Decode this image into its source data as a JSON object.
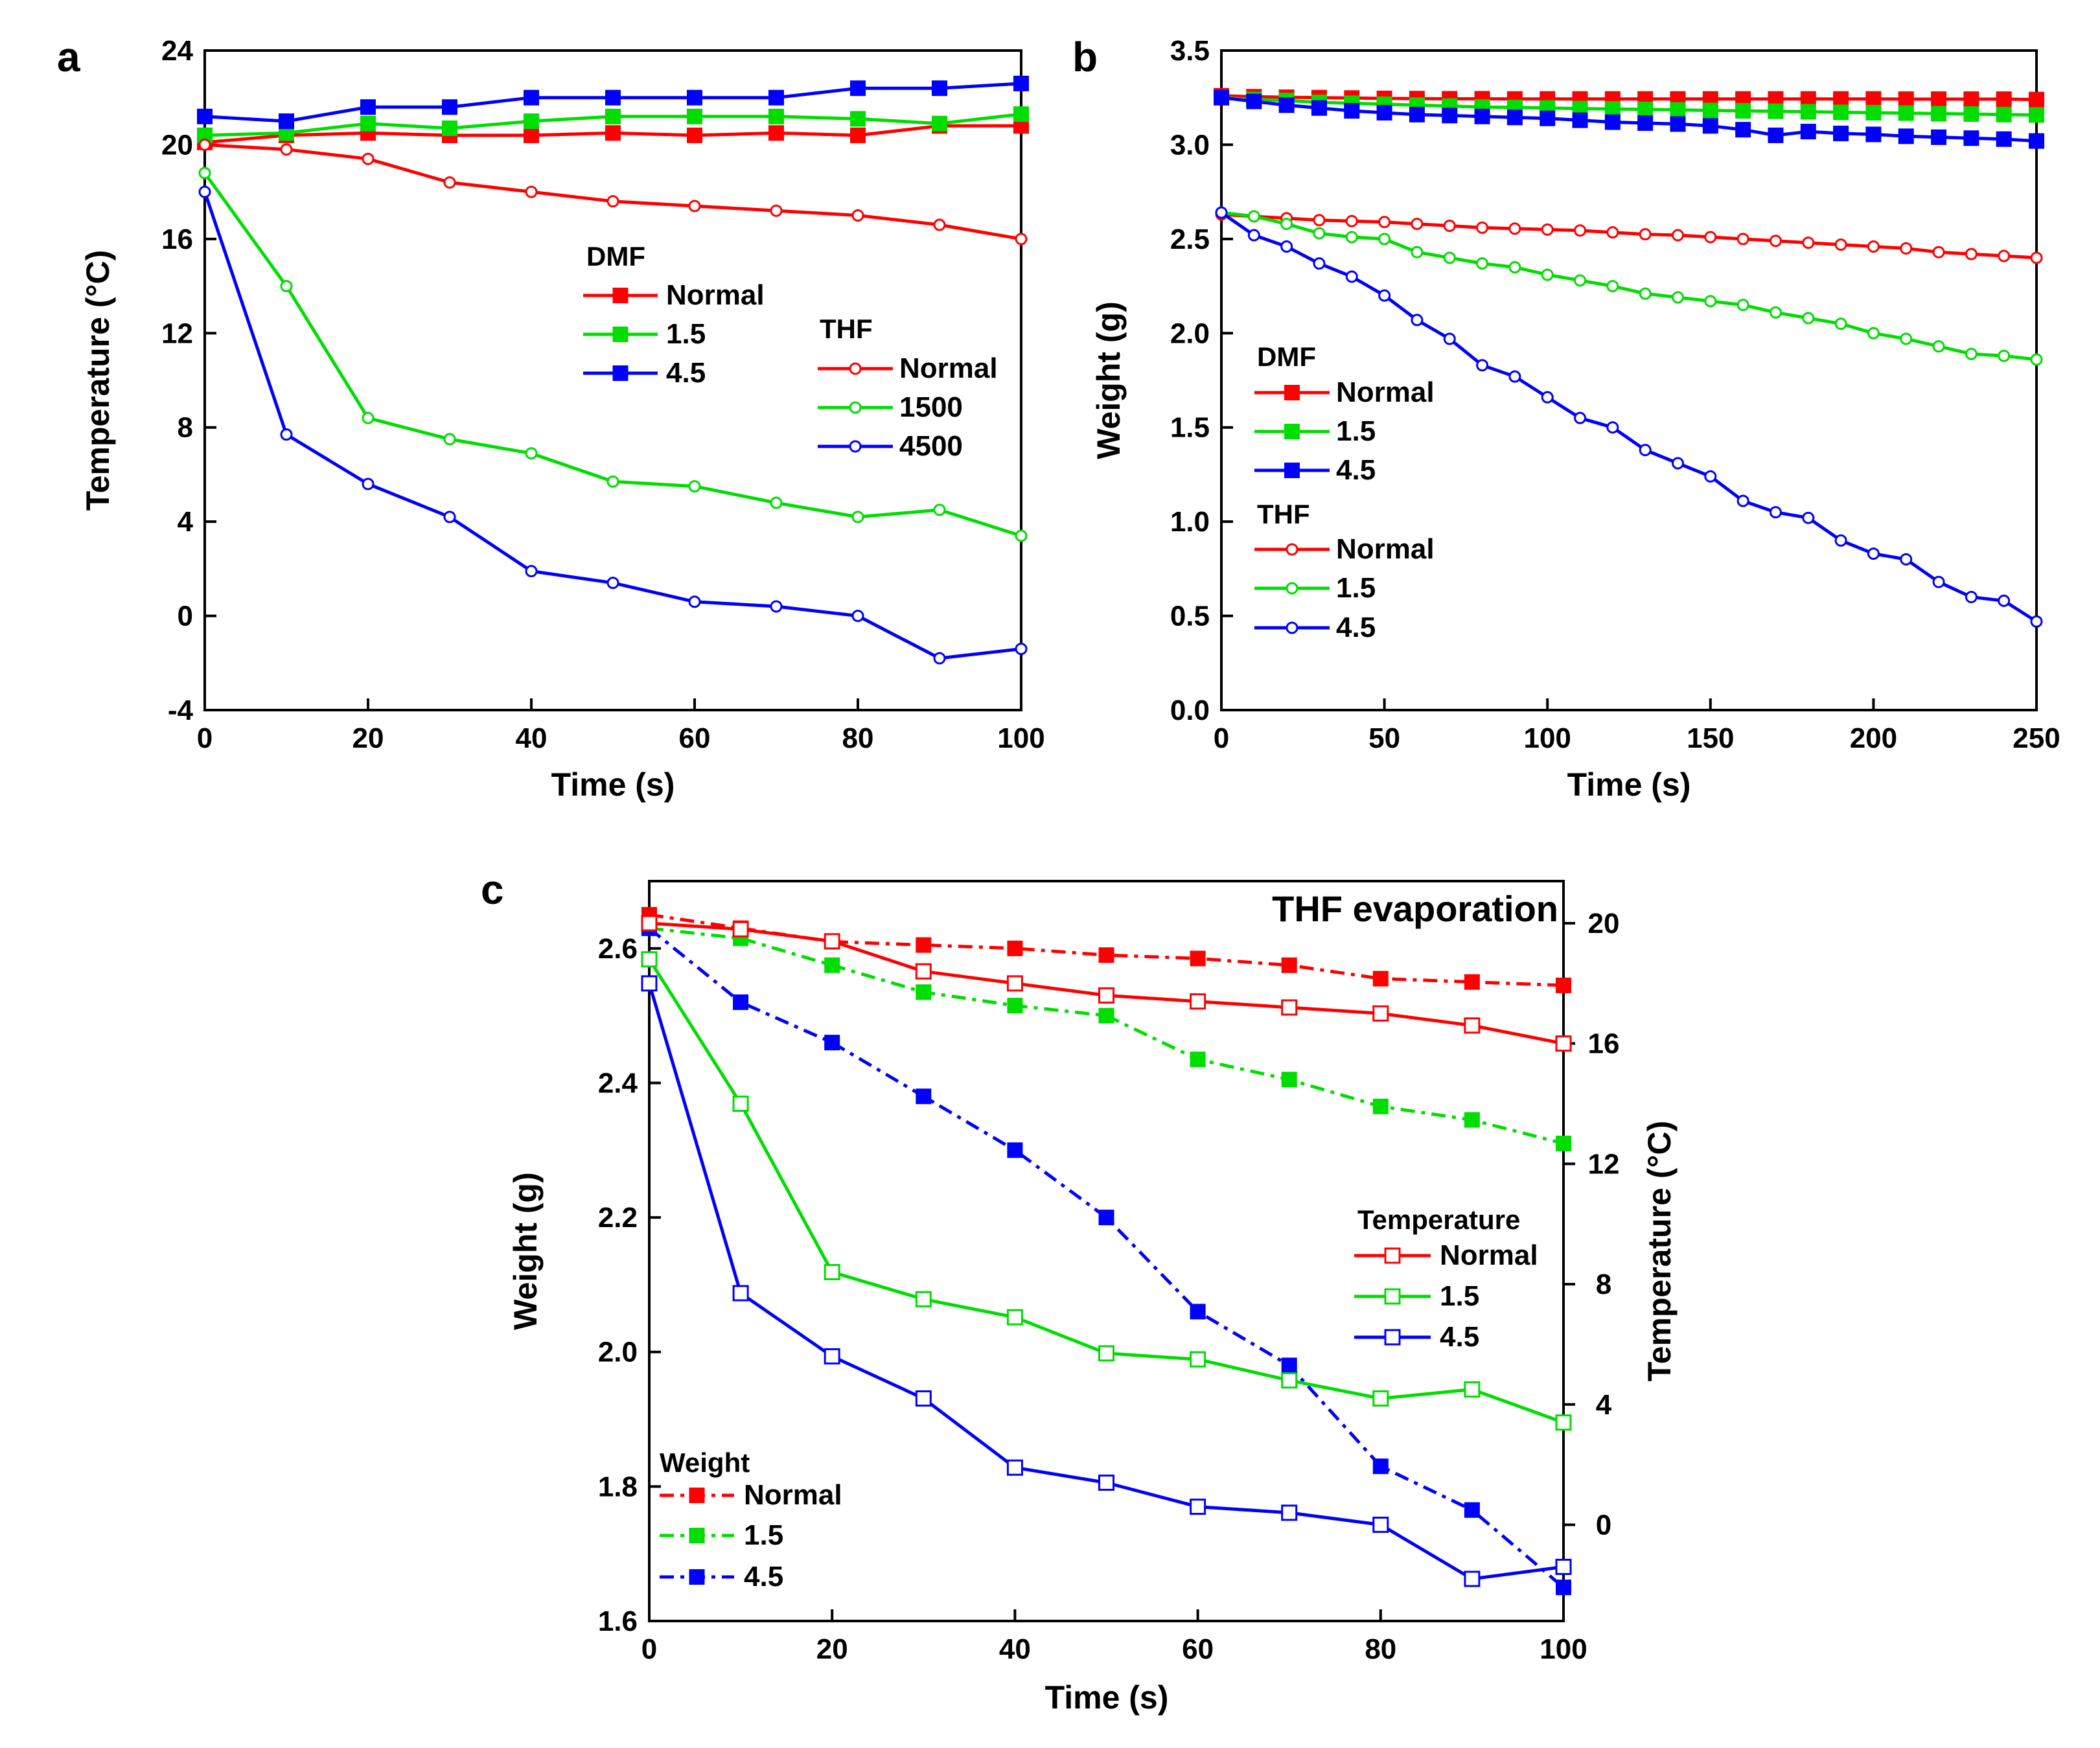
{
  "figure": {
    "panels": [
      "a",
      "b",
      "c"
    ]
  },
  "chart_data": [
    {
      "id": "a",
      "type": "line",
      "panel_label": "a",
      "xlabel": "Time (s)",
      "ylabel": "Temperature (°C)",
      "xlim": [
        0,
        100
      ],
      "ylim": [
        -4,
        24
      ],
      "xticks": [
        0,
        20,
        40,
        60,
        80,
        100
      ],
      "yticks": [
        -4,
        0,
        4,
        8,
        12,
        16,
        20,
        24
      ],
      "x": [
        0,
        10,
        20,
        30,
        40,
        50,
        60,
        70,
        80,
        90,
        100
      ],
      "legend_groups": [
        {
          "title": "DMF",
          "entries": [
            "Normal",
            "1.5",
            "4.5"
          ]
        },
        {
          "title": "THF",
          "entries": [
            "Normal",
            "1500",
            "4500"
          ]
        }
      ],
      "series": [
        {
          "name": "Normal",
          "group": "DMF",
          "color": "#ff0000",
          "marker": "filled-square",
          "values": [
            20.1,
            20.4,
            20.5,
            20.4,
            20.4,
            20.5,
            20.4,
            20.5,
            20.4,
            20.8,
            20.8
          ]
        },
        {
          "name": "1.5",
          "group": "DMF",
          "color": "#00dd00",
          "marker": "filled-square",
          "values": [
            20.4,
            20.5,
            20.9,
            20.7,
            21.0,
            21.2,
            21.2,
            21.2,
            21.1,
            20.9,
            21.3
          ]
        },
        {
          "name": "4.5",
          "group": "DMF",
          "color": "#0000ff",
          "marker": "filled-square",
          "values": [
            21.2,
            21.0,
            21.6,
            21.6,
            22.0,
            22.0,
            22.0,
            22.0,
            22.4,
            22.4,
            22.6
          ]
        },
        {
          "name": "Normal",
          "group": "THF",
          "color": "#ff0000",
          "marker": "open-circle",
          "values": [
            20.0,
            19.8,
            19.4,
            18.4,
            18.0,
            17.6,
            17.4,
            17.2,
            17.0,
            16.6,
            16.0
          ]
        },
        {
          "name": "1500",
          "group": "THF",
          "color": "#00dd00",
          "marker": "open-circle",
          "values": [
            18.8,
            14.0,
            8.4,
            7.5,
            6.9,
            5.7,
            5.5,
            4.8,
            4.2,
            4.5,
            3.4
          ]
        },
        {
          "name": "4500",
          "group": "THF",
          "color": "#0000ff",
          "marker": "open-circle",
          "values": [
            18.0,
            7.7,
            5.6,
            4.2,
            1.9,
            1.4,
            0.6,
            0.4,
            0.0,
            -1.8,
            -1.4
          ]
        }
      ]
    },
    {
      "id": "b",
      "type": "line",
      "panel_label": "b",
      "xlabel": "Time (s)",
      "ylabel": "Weight (g)",
      "xlim": [
        0,
        250
      ],
      "ylim": [
        0.0,
        3.5
      ],
      "xticks": [
        0,
        50,
        100,
        150,
        200,
        250
      ],
      "yticks": [
        "0.0",
        "0.5",
        "1.0",
        "1.5",
        "2.0",
        "2.5",
        "3.0",
        "3.5"
      ],
      "x": [
        0,
        10,
        20,
        30,
        40,
        50,
        60,
        70,
        80,
        90,
        100,
        110,
        120,
        130,
        140,
        150,
        160,
        170,
        180,
        190,
        200,
        210,
        220,
        230,
        240,
        250
      ],
      "legend_groups": [
        {
          "title": "DMF",
          "entries": [
            "Normal",
            "1.5",
            "4.5"
          ]
        },
        {
          "title": "THF",
          "entries": [
            "Normal",
            "1.5",
            "4.5"
          ]
        }
      ],
      "series": [
        {
          "name": "Normal",
          "group": "DMF",
          "color": "#ff0000",
          "marker": "filled-square",
          "values": [
            3.26,
            3.255,
            3.252,
            3.25,
            3.248,
            3.246,
            3.245,
            3.244,
            3.244,
            3.243,
            3.243,
            3.243,
            3.243,
            3.243,
            3.243,
            3.243,
            3.243,
            3.243,
            3.243,
            3.243,
            3.243,
            3.242,
            3.242,
            3.242,
            3.242,
            3.24
          ]
        },
        {
          "name": "1.5",
          "group": "DMF",
          "color": "#00dd00",
          "marker": "filled-square",
          "values": [
            3.25,
            3.24,
            3.235,
            3.225,
            3.22,
            3.215,
            3.21,
            3.205,
            3.2,
            3.198,
            3.195,
            3.192,
            3.19,
            3.188,
            3.185,
            3.182,
            3.18,
            3.178,
            3.175,
            3.172,
            3.17,
            3.168,
            3.165,
            3.163,
            3.16,
            3.158
          ]
        },
        {
          "name": "4.5",
          "group": "DMF",
          "color": "#0000ff",
          "marker": "filled-square",
          "values": [
            3.25,
            3.23,
            3.21,
            3.195,
            3.18,
            3.17,
            3.16,
            3.155,
            3.15,
            3.145,
            3.14,
            3.13,
            3.12,
            3.115,
            3.11,
            3.1,
            3.08,
            3.05,
            3.07,
            3.06,
            3.055,
            3.045,
            3.04,
            3.035,
            3.03,
            3.02
          ]
        },
        {
          "name": "Normal",
          "group": "THF",
          "color": "#ff0000",
          "marker": "open-circle",
          "values": [
            2.63,
            2.62,
            2.61,
            2.6,
            2.595,
            2.59,
            2.58,
            2.57,
            2.56,
            2.555,
            2.55,
            2.545,
            2.535,
            2.525,
            2.52,
            2.51,
            2.5,
            2.49,
            2.48,
            2.47,
            2.46,
            2.45,
            2.43,
            2.42,
            2.41,
            2.4
          ]
        },
        {
          "name": "1.5",
          "group": "THF",
          "color": "#00dd00",
          "marker": "open-circle",
          "values": [
            2.64,
            2.62,
            2.58,
            2.53,
            2.51,
            2.5,
            2.43,
            2.4,
            2.37,
            2.35,
            2.31,
            2.28,
            2.25,
            2.21,
            2.19,
            2.17,
            2.15,
            2.11,
            2.08,
            2.05,
            2.0,
            1.97,
            1.93,
            1.89,
            1.88,
            1.86
          ]
        },
        {
          "name": "4.5",
          "group": "THF",
          "color": "#0000ff",
          "marker": "open-circle",
          "values": [
            2.64,
            2.52,
            2.46,
            2.37,
            2.3,
            2.2,
            2.07,
            1.97,
            1.83,
            1.77,
            1.66,
            1.55,
            1.5,
            1.38,
            1.31,
            1.24,
            1.11,
            1.05,
            1.02,
            0.9,
            0.83,
            0.8,
            0.68,
            0.6,
            0.58,
            0.47
          ]
        }
      ]
    },
    {
      "id": "c",
      "type": "line",
      "panel_label": "c",
      "title": "THF evaporation",
      "xlabel": "Time (s)",
      "ylabel": "Weight (g)",
      "y2label": "Temperature (°C)",
      "xlim": [
        0,
        100
      ],
      "ylim": [
        1.6,
        2.7
      ],
      "y2lim": [
        -3.2,
        21.4
      ],
      "xticks": [
        0,
        20,
        40,
        60,
        80,
        100
      ],
      "yticks": [
        "1.6",
        "1.8",
        "2.0",
        "2.2",
        "2.4",
        "2.6"
      ],
      "y2ticks": [
        0,
        4,
        8,
        12,
        16,
        20
      ],
      "x": [
        0,
        10,
        20,
        30,
        40,
        50,
        60,
        70,
        80,
        90,
        100
      ],
      "legend_groups": [
        {
          "title": "Temperature",
          "entries": [
            "Normal",
            "1.5",
            "4.5"
          ]
        },
        {
          "title": "Weight",
          "entries": [
            "Normal",
            "1.5",
            "4.5"
          ]
        }
      ],
      "series": [
        {
          "name": "Normal",
          "group": "Weight",
          "axis": "left",
          "style": "dash-dot",
          "color": "#ff0000",
          "marker": "filled-square",
          "values": [
            2.65,
            2.63,
            2.61,
            2.605,
            2.6,
            2.59,
            2.585,
            2.575,
            2.555,
            2.55,
            2.545
          ]
        },
        {
          "name": "1.5",
          "group": "Weight",
          "axis": "left",
          "style": "dash-dot",
          "color": "#00dd00",
          "marker": "filled-square",
          "values": [
            2.63,
            2.615,
            2.575,
            2.535,
            2.515,
            2.5,
            2.435,
            2.405,
            2.365,
            2.345,
            2.31
          ]
        },
        {
          "name": "4.5",
          "group": "Weight",
          "axis": "left",
          "style": "dash-dot",
          "color": "#0000ff",
          "marker": "filled-square",
          "values": [
            2.63,
            2.52,
            2.46,
            2.38,
            2.3,
            2.2,
            2.06,
            1.98,
            1.83,
            1.765,
            1.65
          ]
        },
        {
          "name": "Normal",
          "group": "Temperature",
          "axis": "right",
          "style": "solid",
          "color": "#ff0000",
          "marker": "open-square",
          "values": [
            20.0,
            19.8,
            19.4,
            18.4,
            18.0,
            17.6,
            17.4,
            17.2,
            17.0,
            16.6,
            16.0
          ]
        },
        {
          "name": "1.5",
          "group": "Temperature",
          "axis": "right",
          "style": "solid",
          "color": "#00dd00",
          "marker": "open-square",
          "values": [
            18.8,
            14.0,
            8.4,
            7.5,
            6.9,
            5.7,
            5.5,
            4.8,
            4.2,
            4.5,
            3.4
          ]
        },
        {
          "name": "4.5",
          "group": "Temperature",
          "axis": "right",
          "style": "solid",
          "color": "#0000ff",
          "marker": "open-square",
          "values": [
            18.0,
            7.7,
            5.6,
            4.2,
            1.9,
            1.4,
            0.6,
            0.4,
            0.0,
            -1.8,
            -1.4
          ]
        }
      ]
    }
  ]
}
